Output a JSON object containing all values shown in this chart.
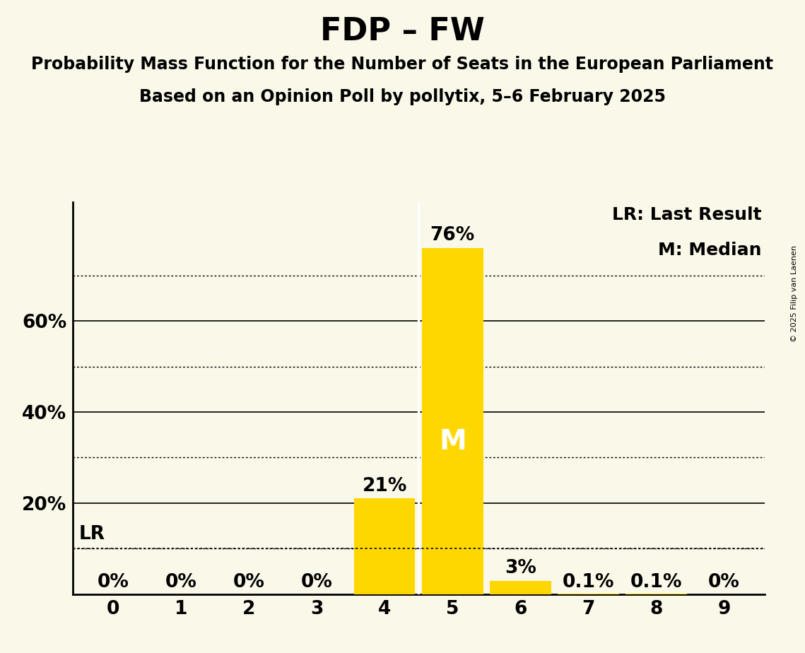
{
  "title": "FDP – FW",
  "subtitle1": "Probability Mass Function for the Number of Seats in the European Parliament",
  "subtitle2": "Based on an Opinion Poll by pollytix, 5–6 February 2025",
  "copyright": "© 2025 Filip van Laenen",
  "seats": [
    0,
    1,
    2,
    3,
    4,
    5,
    6,
    7,
    8,
    9
  ],
  "probabilities": [
    0.0,
    0.0,
    0.0,
    0.0,
    0.21,
    0.76,
    0.03,
    0.001,
    0.001,
    0.0
  ],
  "prob_labels": [
    "0%",
    "0%",
    "0%",
    "0%",
    "21%",
    "76%",
    "3%",
    "0.1%",
    "0.1%",
    "0%"
  ],
  "bar_color": "#FFD700",
  "background_color": "#FAF8E8",
  "median_seat": 5,
  "lr_value": 0.1,
  "solid_lines": [
    0.2,
    0.4,
    0.6
  ],
  "dotted_lines": [
    0.1,
    0.3,
    0.5,
    0.7
  ],
  "ylim": [
    0,
    0.86
  ],
  "legend_lr": "LR: Last Result",
  "legend_m": "M: Median",
  "title_fontsize": 32,
  "subtitle_fontsize": 17,
  "axis_fontsize": 19,
  "bar_label_fontsize": 19,
  "legend_fontsize": 18
}
